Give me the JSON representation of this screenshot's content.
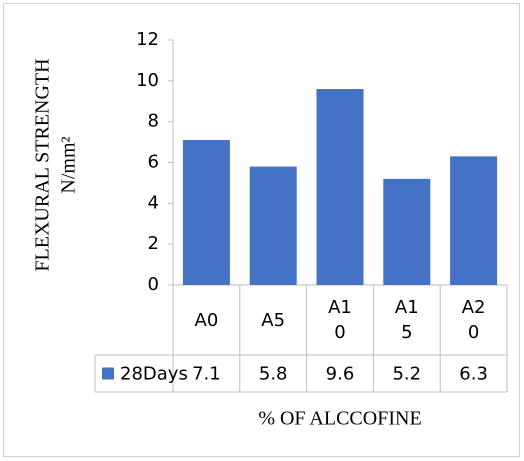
{
  "chart_data": {
    "type": "bar",
    "y_axis_label": [
      "FLEXURAL STRENGTH",
      "N/mm²"
    ],
    "x_axis_label": "% OF ALCCOFINE",
    "categories": [
      "A0",
      "A5",
      "A10",
      "A15",
      "A20"
    ],
    "series": [
      {
        "name": "28Days",
        "color": "#4472c4",
        "values": [
          7.1,
          5.8,
          9.6,
          5.2,
          6.3
        ]
      }
    ],
    "ylim": [
      0,
      12
    ],
    "yticks": [
      0,
      2,
      4,
      6,
      8,
      10,
      12
    ]
  }
}
